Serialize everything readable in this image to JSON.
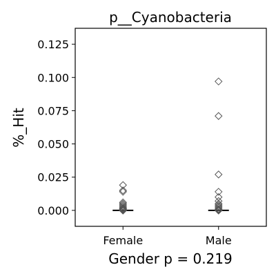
{
  "chart_data": {
    "type": "scatter",
    "title": "p__Cyanobacteria",
    "xlabel": "Gender p = 0.219",
    "ylabel": "%_Hit",
    "categories": [
      "Female",
      "Male"
    ],
    "ylim": [
      -0.012,
      0.137
    ],
    "yticks": [
      0.0,
      0.025,
      0.05,
      0.075,
      0.1,
      0.125
    ],
    "ytick_labels": [
      "0.000",
      "0.025",
      "0.050",
      "0.075",
      "0.100",
      "0.125"
    ],
    "marker": "open-diamond",
    "marker_color": "#555555",
    "median_color": "#000000",
    "grid": false,
    "series": [
      {
        "category": "Female",
        "values": [
          0.019,
          0.015,
          0.014,
          0.006,
          0.005,
          0.004,
          0.003,
          0.002,
          0.0015,
          0.001,
          0.0005,
          0.0,
          0.0,
          0.0,
          0.0,
          0.0
        ],
        "median": 0.0
      },
      {
        "category": "Male",
        "values": [
          0.097,
          0.071,
          0.027,
          0.014,
          0.01,
          0.007,
          0.005,
          0.004,
          0.003,
          0.002,
          0.001,
          0.0005,
          0.0,
          0.0,
          0.0,
          0.0
        ],
        "median": 0.0
      }
    ]
  }
}
